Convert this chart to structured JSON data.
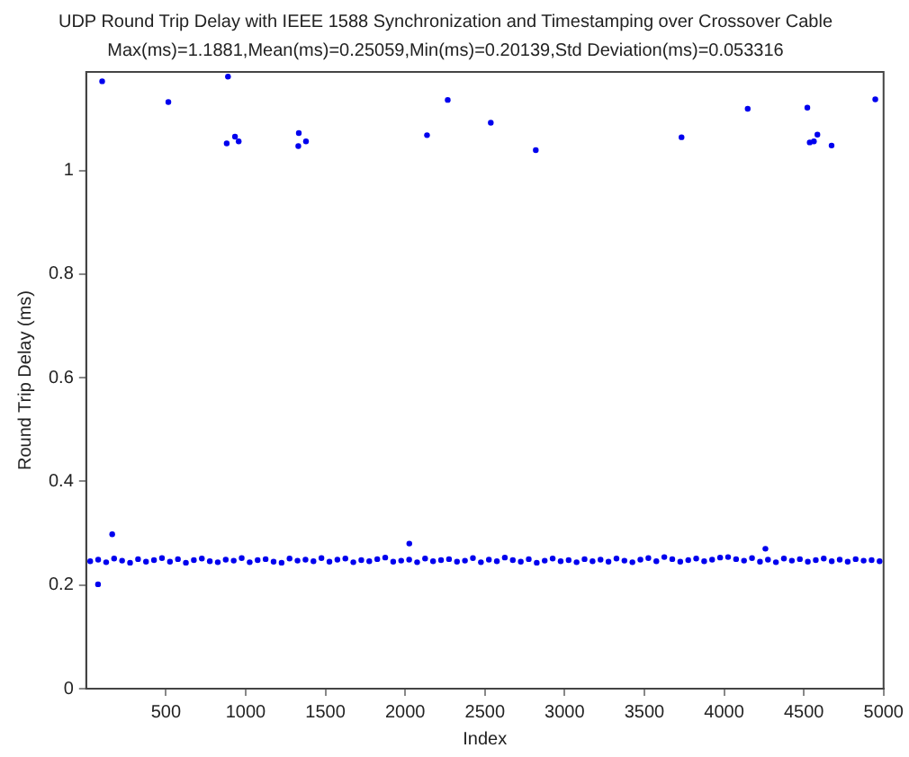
{
  "chart_data": {
    "type": "scatter",
    "title": "UDP Round Trip Delay with IEEE 1588 Synchronization and Timestamping over Crossover Cable",
    "subtitle": "Max(ms)=1.1881,Mean(ms)=0.25059,Min(ms)=0.20139,Std Deviation(ms)=0.053316",
    "xlabel": "Index",
    "ylabel": "Round Trip Delay (ms)",
    "series": [
      {
        "color": "#0000ee",
        "x": [
          25,
          75,
          125,
          175,
          225,
          275,
          325,
          375,
          425,
          475,
          525,
          575,
          625,
          675,
          725,
          775,
          825,
          875,
          925,
          975,
          1025,
          1075,
          1125,
          1175,
          1225,
          1275,
          1325,
          1375,
          1425,
          1475,
          1525,
          1575,
          1625,
          1675,
          1725,
          1775,
          1825,
          1875,
          1925,
          1975,
          2025,
          2075,
          2125,
          2175,
          2225,
          2275,
          2325,
          2375,
          2425,
          2475,
          2525,
          2575,
          2625,
          2675,
          2725,
          2775,
          2825,
          2875,
          2925,
          2975,
          3025,
          3075,
          3125,
          3175,
          3225,
          3275,
          3325,
          3375,
          3425,
          3475,
          3525,
          3575,
          3625,
          3675,
          3725,
          3775,
          3825,
          3875,
          3925,
          3975,
          4025,
          4075,
          4125,
          4175,
          4225,
          4275,
          4325,
          4375,
          4425,
          4475,
          4525,
          4575,
          4625,
          4675,
          4725,
          4775,
          4825,
          4875,
          4925,
          4975,
          100,
          515,
          889,
          881,
          933,
          956,
          1333,
          1330,
          1378,
          2137,
          2267,
          2537,
          2819,
          3733,
          4148,
          4522,
          4537,
          4563,
          4585,
          4674,
          4948,
          163,
          2026,
          4259,
          74
        ],
        "values": [
          0.246,
          0.249,
          0.244,
          0.251,
          0.247,
          0.243,
          0.25,
          0.245,
          0.248,
          0.252,
          0.245,
          0.25,
          0.243,
          0.248,
          0.251,
          0.246,
          0.244,
          0.249,
          0.247,
          0.252,
          0.244,
          0.248,
          0.25,
          0.245,
          0.243,
          0.251,
          0.247,
          0.249,
          0.246,
          0.252,
          0.245,
          0.249,
          0.251,
          0.244,
          0.248,
          0.246,
          0.25,
          0.253,
          0.245,
          0.247,
          0.249,
          0.244,
          0.251,
          0.246,
          0.248,
          0.25,
          0.245,
          0.247,
          0.252,
          0.244,
          0.249,
          0.246,
          0.253,
          0.248,
          0.245,
          0.25,
          0.243,
          0.247,
          0.251,
          0.246,
          0.248,
          0.244,
          0.25,
          0.246,
          0.249,
          0.245,
          0.251,
          0.247,
          0.244,
          0.249,
          0.252,
          0.246,
          0.254,
          0.25,
          0.245,
          0.248,
          0.251,
          0.246,
          0.249,
          0.253,
          0.254,
          0.25,
          0.247,
          0.252,
          0.245,
          0.249,
          0.244,
          0.251,
          0.247,
          0.25,
          0.245,
          0.248,
          0.251,
          0.246,
          0.249,
          0.245,
          0.25,
          0.247,
          0.248,
          0.246,
          1.172,
          1.132,
          1.181,
          1.052,
          1.065,
          1.056,
          1.072,
          1.047,
          1.056,
          1.068,
          1.136,
          1.092,
          1.039,
          1.064,
          1.119,
          1.121,
          1.054,
          1.056,
          1.069,
          1.048,
          1.137,
          0.298,
          0.28,
          0.27,
          0.2014
        ]
      }
    ],
    "xlim": [
      0,
      5000
    ],
    "xticks": [
      500,
      1000,
      1500,
      2000,
      2500,
      3000,
      3500,
      4000,
      4500,
      5000
    ],
    "ylim": [
      0,
      1.19
    ],
    "yticks": [
      0,
      0.2,
      0.4,
      0.6,
      0.8,
      1
    ],
    "marker": "circle",
    "grid": false,
    "legend": false
  }
}
